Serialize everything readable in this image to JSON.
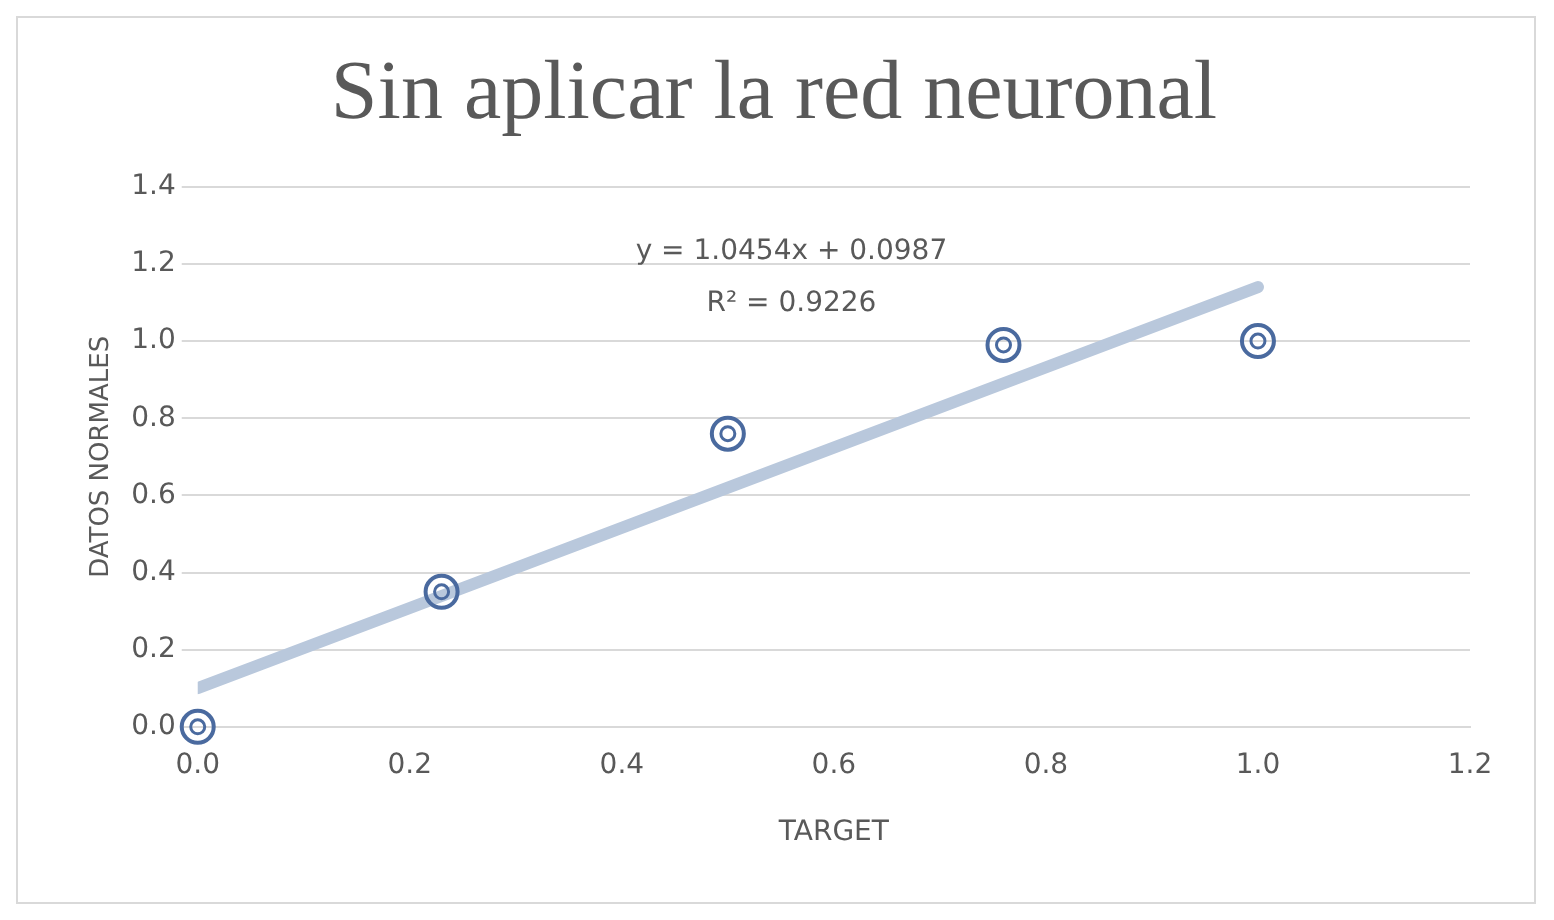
{
  "chart_data": {
    "type": "scatter",
    "title": "Sin aplicar la red neuronal",
    "xlabel": "TARGET",
    "ylabel": "DATOS NORMALES",
    "xlim": [
      0,
      1.2
    ],
    "xticks": [
      {
        "value": 0,
        "label": "0.0"
      },
      {
        "value": 0.2,
        "label": "0.2"
      },
      {
        "value": 0.4,
        "label": "0.4"
      },
      {
        "value": 0.6,
        "label": "0.6"
      },
      {
        "value": 0.8,
        "label": "0.8"
      },
      {
        "value": 1,
        "label": "1.0"
      },
      {
        "value": 1.2,
        "label": "1.2"
      }
    ],
    "ylim": [
      0,
      1.4
    ],
    "yticks": [
      {
        "value": 0,
        "label": "0.0"
      },
      {
        "value": 0.2,
        "label": "0.2"
      },
      {
        "value": 0.4,
        "label": "0.4"
      },
      {
        "value": 0.6,
        "label": "0.6"
      },
      {
        "value": 0.8,
        "label": "0.8"
      },
      {
        "value": 1,
        "label": "1.0"
      },
      {
        "value": 1.2,
        "label": "1.2"
      },
      {
        "value": 1.4,
        "label": "1.4"
      }
    ],
    "grid": "y",
    "legend": false,
    "series": [
      {
        "type": "scatter",
        "color": "#4a6a9f",
        "marker": "circle",
        "x": [
          0,
          0.23,
          0.5,
          0.76,
          1.0
        ],
        "values": [
          0,
          0.35,
          0.76,
          0.99,
          1.0
        ]
      },
      {
        "type": "line",
        "color": "#b9c8dc",
        "marker": "none",
        "x": [
          0,
          1.0
        ],
        "values": [
          0.1,
          1.14
        ]
      }
    ],
    "annotations": [
      "y = 1.0454x + 0.0987",
      "R² = 0.9226"
    ]
  }
}
